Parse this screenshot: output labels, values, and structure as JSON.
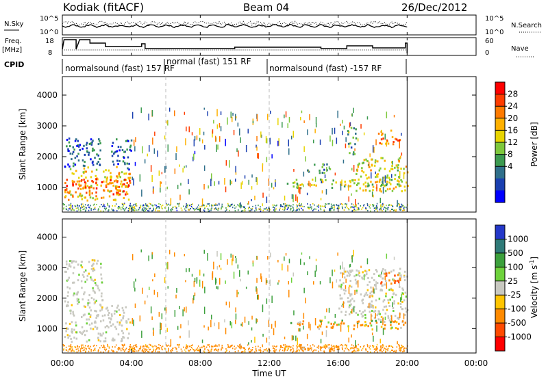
{
  "header": {
    "station": "Kodiak (fitACF)",
    "beam": "Beam 04",
    "date": "26/Dec/2012"
  },
  "panels": {
    "noise": {
      "left_label": "N.Sky",
      "right_label": "N.Search",
      "left_ticks": [
        "10^5",
        "10^0"
      ],
      "right_ticks": [
        "10^5",
        "10^0"
      ]
    },
    "freq": {
      "left_label_1": "Freq.",
      "left_label_2": "[MHz]",
      "right_label": "Nave",
      "left_ticks": [
        "18",
        "8"
      ],
      "right_ticks": [
        "60",
        "0"
      ]
    },
    "cpid": {
      "label": "CPID",
      "segments": [
        {
          "label": "normalsound (fast) 157 RF",
          "start": 0.0,
          "end": 6.0
        },
        {
          "label": "normal (fast) 151 RF",
          "start": 6.0,
          "end": 12.0
        },
        {
          "label": "normalsound (fast) -157 RF",
          "start": 12.0,
          "end": 20.0
        }
      ]
    }
  },
  "power_colorbar": {
    "label": "Power [dB]",
    "ticks": [
      "28",
      "24",
      "20",
      "16",
      "12",
      "8",
      "4"
    ],
    "colors": [
      "#ff0000",
      "#ff3c00",
      "#ff7a00",
      "#ffb000",
      "#e8d400",
      "#7ec83c",
      "#3c9a50",
      "#2f6f8a",
      "#1a3fb0",
      "#0000ff"
    ]
  },
  "velocity_colorbar": {
    "label": "Velocity [m s",
    "label_sup": "-1",
    "label_end": "]",
    "ticks": [
      "1000",
      "500",
      "100",
      "25",
      "-25",
      "-100",
      "-500",
      "-1000"
    ],
    "colors": [
      "#2438c8",
      "#2f7a78",
      "#3ca03c",
      "#6ed23c",
      "#c8c8c0",
      "#ffc400",
      "#ff8a00",
      "#ff4a00",
      "#ff0000"
    ]
  },
  "chart_data": {
    "type": "heatmap",
    "xlabel": "Time UT",
    "x_ticks": [
      "00:00",
      "04:00",
      "08:00",
      "12:00",
      "16:00",
      "20:00",
      "00:00"
    ],
    "xlim": [
      0,
      24
    ],
    "ylabel": "Slant Range [km]",
    "y_ticks": [
      "4000",
      "3000",
      "2000",
      "1000"
    ],
    "ylim": [
      200,
      4600
    ],
    "data_end_hour": 20,
    "cpid_changes_hours": [
      6,
      12
    ],
    "power_regions": [
      {
        "t0": 0.1,
        "t1": 3.9,
        "r0": 600,
        "r1": 1700,
        "dB": 20
      },
      {
        "t0": 0.1,
        "t1": 3.9,
        "r0": 800,
        "r1": 1300,
        "dB": 26
      },
      {
        "t0": 0.1,
        "t1": 2.3,
        "r0": 1700,
        "r1": 2700,
        "dB": 8
      },
      {
        "t0": 2.8,
        "t1": 4.0,
        "r0": 1600,
        "r1": 2600,
        "dB": 8
      },
      {
        "t0": 13.0,
        "t1": 20.0,
        "r0": 1000,
        "r1": 1300,
        "dB": 16
      },
      {
        "t0": 17.0,
        "t1": 20.0,
        "r0": 900,
        "r1": 2000,
        "dB": 18
      },
      {
        "t0": 18.3,
        "t1": 19.6,
        "r0": 2400,
        "r1": 2900,
        "dB": 24
      },
      {
        "t0": 14.0,
        "t1": 15.5,
        "r0": 1500,
        "r1": 1800,
        "dB": 12
      },
      {
        "t0": 16.5,
        "t1": 17.0,
        "r0": 2000,
        "r1": 3000,
        "dB": 12
      }
    ],
    "velocity_regions": [
      {
        "t0": 0.1,
        "t1": 3.9,
        "r0": 600,
        "r1": 1800,
        "v": 0
      },
      {
        "t0": 0.1,
        "t1": 2.3,
        "r0": 1800,
        "r1": 3300,
        "v": 0
      },
      {
        "t0": 13.0,
        "t1": 20.0,
        "r0": 1000,
        "r1": 1300,
        "v": -50
      },
      {
        "t0": 16.0,
        "t1": 20.0,
        "r0": 1300,
        "r1": 3000,
        "v": 0
      },
      {
        "t0": 18.3,
        "t1": 19.6,
        "r0": 2500,
        "r1": 2900,
        "v": -300
      },
      {
        "t0": 13.5,
        "t1": 16.0,
        "r0": 300,
        "r1": 500,
        "v": -150
      }
    ]
  }
}
